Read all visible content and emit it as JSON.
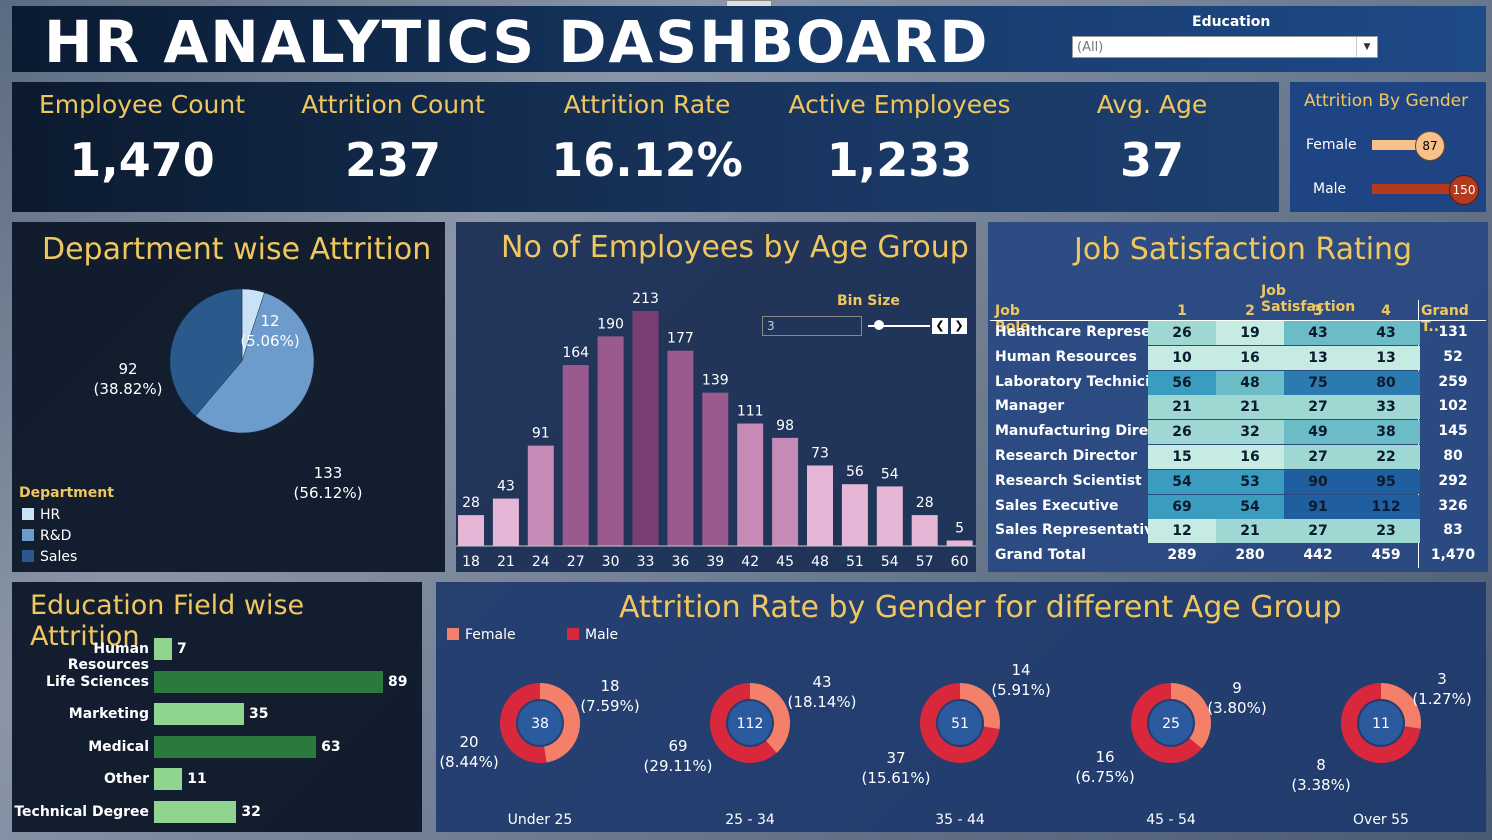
{
  "header": {
    "title": "HR  ANALYTICS  DASHBOARD",
    "education_label": "Education",
    "education_value": "(All)"
  },
  "kpis": [
    {
      "label": "Employee Count",
      "value": "1,470"
    },
    {
      "label": "Attrition Count",
      "value": "237"
    },
    {
      "label": "Attrition Rate",
      "value": "16.12%"
    },
    {
      "label": "Active Employees",
      "value": "1,233"
    },
    {
      "label": "Avg. Age",
      "value": "37"
    }
  ],
  "gender_attrition": {
    "title": "Attrition By Gender",
    "female_label": "Female",
    "female_value": "87",
    "male_label": "Male",
    "male_value": "150",
    "female_color": "#f8c08a",
    "male_color": "#b23a1e"
  },
  "department": {
    "title": "Department wise Attrition",
    "legend_title": "Department",
    "legend": [
      "HR",
      "R&D",
      "Sales"
    ],
    "colors": [
      "#c9e2f5",
      "#6d9ccc",
      "#2a5a8c"
    ],
    "labels": [
      {
        "line1": "12",
        "line2": "(5.06%)"
      },
      {
        "line1": "133",
        "line2": "(56.12%)"
      },
      {
        "line1": "92",
        "line2": "(38.82%)"
      }
    ]
  },
  "age_group": {
    "title": "No of Employees by Age Group",
    "bin_label": "Bin Size",
    "bin_value": "3",
    "prev_btn": "❮",
    "next_btn": "❯"
  },
  "job_satisfaction": {
    "title": "Job Satisfaction Rating",
    "group_header": "Job Satisfaction",
    "role_header": "Job Role",
    "col_headers": [
      "1",
      "2",
      "3",
      "4"
    ],
    "gt_header": "Grand T..",
    "rows": [
      {
        "role": "Healthcare Represe..",
        "v": [
          "26",
          "19",
          "43",
          "43"
        ],
        "gt": "131"
      },
      {
        "role": "Human Resources",
        "v": [
          "10",
          "16",
          "13",
          "13"
        ],
        "gt": "52"
      },
      {
        "role": "Laboratory Technici..",
        "v": [
          "56",
          "48",
          "75",
          "80"
        ],
        "gt": "259"
      },
      {
        "role": "Manager",
        "v": [
          "21",
          "21",
          "27",
          "33"
        ],
        "gt": "102"
      },
      {
        "role": "Manufacturing Direc..",
        "v": [
          "26",
          "32",
          "49",
          "38"
        ],
        "gt": "145"
      },
      {
        "role": "Research Director",
        "v": [
          "15",
          "16",
          "27",
          "22"
        ],
        "gt": "80"
      },
      {
        "role": "Research Scientist",
        "v": [
          "54",
          "53",
          "90",
          "95"
        ],
        "gt": "292"
      },
      {
        "role": "Sales Executive",
        "v": [
          "69",
          "54",
          "91",
          "112"
        ],
        "gt": "326"
      },
      {
        "role": "Sales Representative",
        "v": [
          "12",
          "21",
          "27",
          "23"
        ],
        "gt": "83"
      }
    ],
    "grand_total": {
      "label": "Grand Total",
      "v": [
        "289",
        "280",
        "442",
        "459"
      ],
      "gt": "1,470"
    }
  },
  "education_field": {
    "title": "Education Field wise Attrition",
    "color_light": "#8fd48f",
    "color_dark": "#2a7a3e"
  },
  "gender_age": {
    "title": "Attrition Rate by Gender for different Age Group",
    "legend_female": "Female",
    "legend_male": "Male",
    "female_color": "#f4806a",
    "male_color": "#d9283c",
    "center_color": "#2c5a9e",
    "groups": [
      {
        "cat": "Under 25",
        "total": "38",
        "female": "18",
        "female_pct": "(7.59%)",
        "male": "20",
        "male_pct": "(8.44%)"
      },
      {
        "cat": "25 - 34",
        "total": "112",
        "female": "43",
        "female_pct": "(18.14%)",
        "male": "69",
        "male_pct": "(29.11%)"
      },
      {
        "cat": "35 - 44",
        "total": "51",
        "female": "14",
        "female_pct": "(5.91%)",
        "male": "37",
        "male_pct": "(15.61%)"
      },
      {
        "cat": "45 - 54",
        "total": "25",
        "female": "9",
        "female_pct": "(3.80%)",
        "male": "16",
        "male_pct": "(6.75%)"
      },
      {
        "cat": "Over 55",
        "total": "11",
        "female": "3",
        "female_pct": "(1.27%)",
        "male": "8",
        "male_pct": "(3.38%)"
      }
    ]
  },
  "chart_data": [
    {
      "type": "pie",
      "title": "Department wise Attrition",
      "categories": [
        "HR",
        "R&D",
        "Sales"
      ],
      "values": [
        12,
        133,
        92
      ],
      "percent": [
        5.06,
        56.12,
        38.82
      ]
    },
    {
      "type": "bar",
      "title": "No of Employees by Age Group",
      "categories": [
        "18",
        "21",
        "24",
        "27",
        "30",
        "33",
        "36",
        "39",
        "42",
        "45",
        "48",
        "51",
        "54",
        "57",
        "60"
      ],
      "values": [
        28,
        43,
        91,
        164,
        190,
        213,
        177,
        139,
        111,
        98,
        73,
        56,
        54,
        28,
        5
      ]
    },
    {
      "type": "bar",
      "title": "Education Field wise Attrition",
      "orientation": "horizontal",
      "categories": [
        "Human Resources",
        "Life Sciences",
        "Marketing",
        "Medical",
        "Other",
        "Technical Degree"
      ],
      "values": [
        7,
        89,
        35,
        63,
        11,
        32
      ]
    },
    {
      "type": "pie",
      "title": "Attrition Rate by Gender for different Age Group",
      "categories": [
        "Under 25",
        "25 - 34",
        "35 - 44",
        "45 - 54",
        "Over 55"
      ],
      "series": [
        {
          "name": "Female",
          "values": [
            18,
            43,
            14,
            9,
            3
          ]
        },
        {
          "name": "Male",
          "values": [
            20,
            69,
            37,
            16,
            8
          ]
        }
      ]
    }
  ]
}
